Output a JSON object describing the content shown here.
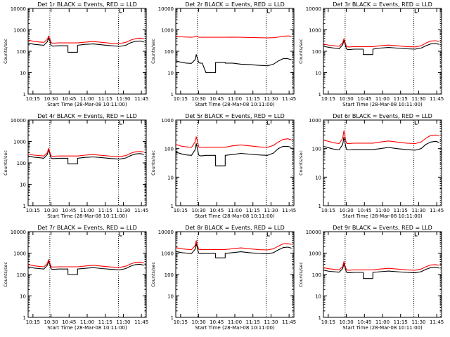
{
  "x_axis": {
    "ticks": [
      "10:15",
      "10:30",
      "10:45",
      "11:00",
      "11:15",
      "11:30",
      "11:45"
    ],
    "label": "Start Time (28-Mar-08 10:11:00)"
  },
  "y_axis": {
    "label": "Counts/sec",
    "ticks": [
      "1",
      "10",
      "100",
      "1000",
      "10000"
    ]
  },
  "colors": {
    "events": "#000000",
    "lld": "#ff0000",
    "axes": "#000000"
  },
  "chart_data": [
    {
      "type": "line",
      "title": "Det 1r BLACK = Events, RED = LLD",
      "xlabel": "Start Time (28-Mar-08 10:11:00)",
      "ylabel": "Counts/sec",
      "ylim": [
        1,
        10000
      ],
      "y_scale": "log",
      "x": [
        "10:11",
        "10:16",
        "10:20",
        "10:24",
        "10:27",
        "10:28",
        "10:29",
        "10:30",
        "10:31",
        "10:33",
        "10:36",
        "10:40",
        "10:44",
        "10:44",
        "10:52",
        "10:52",
        "10:58",
        "11:05",
        "11:12",
        "11:20",
        "11:27",
        "11:32",
        "11:36",
        "11:40",
        "11:44",
        "11:47"
      ],
      "series": [
        {
          "name": "Events",
          "values": [
            240,
            210,
            200,
            190,
            280,
            420,
            300,
            190,
            175,
            175,
            180,
            180,
            180,
            90,
            90,
            190,
            210,
            220,
            200,
            180,
            170,
            190,
            250,
            290,
            300,
            270
          ]
        },
        {
          "name": "LLD",
          "values": [
            330,
            290,
            270,
            260,
            360,
            520,
            370,
            260,
            240,
            240,
            245,
            245,
            245,
            245,
            245,
            245,
            265,
            285,
            260,
            235,
            230,
            260,
            330,
            390,
            410,
            380
          ]
        }
      ]
    },
    {
      "type": "line",
      "title": "Det 2r BLACK = Events, RED = LLD",
      "xlabel": "Start Time (28-Mar-08 10:11:00)",
      "ylabel": "Counts/sec",
      "ylim": [
        1,
        10000
      ],
      "y_scale": "log",
      "x": [
        "10:11",
        "10:16",
        "10:20",
        "10:24",
        "10:27",
        "10:28",
        "10:29",
        "10:30",
        "10:31",
        "10:33",
        "10:36",
        "10:40",
        "10:44",
        "10:44",
        "10:52",
        "10:52",
        "10:58",
        "11:05",
        "11:12",
        "11:20",
        "11:27",
        "11:32",
        "11:36",
        "11:40",
        "11:44",
        "11:47"
      ],
      "series": [
        {
          "name": "Events",
          "values": [
            35,
            30,
            28,
            27,
            40,
            70,
            45,
            30,
            28,
            28,
            10,
            10,
            10,
            30,
            30,
            28,
            28,
            25,
            24,
            22,
            21,
            25,
            35,
            45,
            45,
            40
          ]
        },
        {
          "name": "LLD",
          "values": [
            480,
            470,
            460,
            450,
            470,
            520,
            480,
            455,
            450,
            450,
            450,
            450,
            450,
            450,
            450,
            450,
            455,
            450,
            440,
            430,
            420,
            430,
            460,
            500,
            520,
            500
          ]
        }
      ]
    },
    {
      "type": "line",
      "title": "Det 3r BLACK = Events, RED = LLD",
      "xlabel": "Start Time (28-Mar-08 10:11:00)",
      "ylabel": "Counts/sec",
      "ylim": [
        1,
        10000
      ],
      "y_scale": "log",
      "x": [
        "10:11",
        "10:16",
        "10:20",
        "10:24",
        "10:27",
        "10:28",
        "10:29",
        "10:30",
        "10:31",
        "10:33",
        "10:36",
        "10:40",
        "10:44",
        "10:44",
        "10:52",
        "10:52",
        "10:58",
        "11:05",
        "11:12",
        "11:20",
        "11:27",
        "11:32",
        "11:36",
        "11:40",
        "11:44",
        "11:47"
      ],
      "series": [
        {
          "name": "Events",
          "values": [
            170,
            150,
            140,
            130,
            200,
            320,
            210,
            130,
            120,
            120,
            125,
            125,
            125,
            70,
            70,
            125,
            140,
            150,
            140,
            130,
            125,
            140,
            180,
            220,
            230,
            210
          ]
        },
        {
          "name": "LLD",
          "values": [
            220,
            190,
            180,
            170,
            250,
            380,
            260,
            170,
            160,
            160,
            165,
            165,
            165,
            165,
            165,
            165,
            180,
            195,
            180,
            165,
            160,
            180,
            240,
            300,
            310,
            290
          ]
        }
      ]
    },
    {
      "type": "line",
      "title": "Det 4r BLACK = Events, RED = LLD",
      "xlabel": "Start Time (28-Mar-08 10:11:00)",
      "ylabel": "Counts/sec",
      "ylim": [
        1,
        10000
      ],
      "y_scale": "log",
      "x": [
        "10:11",
        "10:16",
        "10:20",
        "10:24",
        "10:27",
        "10:28",
        "10:29",
        "10:30",
        "10:31",
        "10:33",
        "10:36",
        "10:40",
        "10:44",
        "10:44",
        "10:52",
        "10:52",
        "10:58",
        "11:05",
        "11:12",
        "11:20",
        "11:27",
        "11:32",
        "11:36",
        "11:40",
        "11:44",
        "11:47"
      ],
      "series": [
        {
          "name": "Events",
          "values": [
            210,
            185,
            175,
            165,
            250,
            420,
            270,
            170,
            160,
            160,
            165,
            165,
            165,
            90,
            90,
            165,
            180,
            190,
            175,
            160,
            150,
            170,
            220,
            260,
            270,
            250
          ]
        },
        {
          "name": "LLD",
          "values": [
            260,
            230,
            220,
            210,
            300,
            480,
            320,
            215,
            205,
            205,
            210,
            210,
            210,
            210,
            210,
            210,
            230,
            245,
            225,
            205,
            195,
            220,
            280,
            330,
            340,
            320
          ]
        }
      ]
    },
    {
      "type": "line",
      "title": "Det 5r BLACK = Events, RED = LLD",
      "xlabel": "Start Time (28-Mar-08 10:11:00)",
      "ylabel": "Counts/sec",
      "ylim": [
        1,
        1000
      ],
      "y_scale": "log",
      "x": [
        "10:11",
        "10:16",
        "10:20",
        "10:24",
        "10:27",
        "10:28",
        "10:29",
        "10:30",
        "10:31",
        "10:33",
        "10:36",
        "10:40",
        "10:44",
        "10:44",
        "10:52",
        "10:52",
        "10:58",
        "11:05",
        "11:12",
        "11:20",
        "11:27",
        "11:32",
        "11:36",
        "11:40",
        "11:44",
        "11:47"
      ],
      "series": [
        {
          "name": "Events",
          "values": [
            75,
            65,
            60,
            58,
            90,
            150,
            95,
            60,
            56,
            56,
            58,
            58,
            58,
            25,
            25,
            58,
            62,
            68,
            64,
            60,
            58,
            70,
            100,
            120,
            120,
            110
          ]
        },
        {
          "name": "LLD",
          "values": [
            140,
            120,
            115,
            110,
            170,
            260,
            180,
            115,
            110,
            110,
            112,
            112,
            112,
            112,
            112,
            112,
            125,
            135,
            125,
            115,
            110,
            130,
            170,
            210,
            220,
            200
          ]
        }
      ]
    },
    {
      "type": "line",
      "title": "Det 6r BLACK = Events, RED = LLD",
      "xlabel": "Start Time (28-Mar-08 10:11:00)",
      "ylabel": "Counts/sec",
      "ylim": [
        1,
        1000
      ],
      "y_scale": "log",
      "x": [
        "10:11",
        "10:16",
        "10:20",
        "10:24",
        "10:27",
        "10:28",
        "10:29",
        "10:30",
        "10:31",
        "10:33",
        "10:36",
        "10:40",
        "10:44",
        "10:44",
        "10:52",
        "10:52",
        "10:58",
        "11:05",
        "11:12",
        "11:20",
        "11:27",
        "11:32",
        "11:36",
        "11:40",
        "11:44",
        "11:47"
      ],
      "series": [
        {
          "name": "Events",
          "values": [
            120,
            105,
            95,
            90,
            140,
            250,
            150,
            95,
            90,
            90,
            92,
            92,
            92,
            92,
            92,
            92,
            100,
            110,
            100,
            92,
            88,
            100,
            140,
            170,
            180,
            165
          ]
        },
        {
          "name": "LLD",
          "values": [
            200,
            175,
            160,
            150,
            230,
            420,
            250,
            155,
            150,
            150,
            155,
            155,
            155,
            155,
            155,
            155,
            170,
            185,
            170,
            155,
            150,
            170,
            230,
            290,
            300,
            280
          ]
        }
      ]
    },
    {
      "type": "line",
      "title": "Det 7r BLACK = Events, RED = LLD",
      "xlabel": "Start Time (28-Mar-08 10:11:00)",
      "ylabel": "Counts/sec",
      "ylim": [
        1,
        10000
      ],
      "y_scale": "log",
      "x": [
        "10:11",
        "10:16",
        "10:20",
        "10:24",
        "10:27",
        "10:28",
        "10:29",
        "10:30",
        "10:31",
        "10:33",
        "10:36",
        "10:40",
        "10:44",
        "10:44",
        "10:52",
        "10:52",
        "10:58",
        "11:05",
        "11:12",
        "11:20",
        "11:27",
        "11:32",
        "11:36",
        "11:40",
        "11:44",
        "11:47"
      ],
      "series": [
        {
          "name": "Events",
          "values": [
            230,
            200,
            190,
            180,
            270,
            420,
            290,
            185,
            175,
            175,
            180,
            180,
            180,
            100,
            100,
            180,
            195,
            210,
            190,
            175,
            165,
            190,
            245,
            290,
            300,
            270
          ]
        },
        {
          "name": "LLD",
          "values": [
            290,
            255,
            240,
            230,
            330,
            500,
            350,
            235,
            225,
            225,
            230,
            230,
            230,
            230,
            230,
            230,
            250,
            270,
            245,
            225,
            215,
            245,
            310,
            370,
            380,
            350
          ]
        }
      ]
    },
    {
      "type": "line",
      "title": "Det 8r BLACK = Events, RED = LLD",
      "xlabel": "Start Time (28-Mar-08 10:11:00)",
      "ylabel": "Counts/sec",
      "ylim": [
        1,
        10000
      ],
      "y_scale": "log",
      "x": [
        "10:11",
        "10:16",
        "10:20",
        "10:24",
        "10:27",
        "10:28",
        "10:29",
        "10:30",
        "10:31",
        "10:33",
        "10:36",
        "10:40",
        "10:44",
        "10:44",
        "10:52",
        "10:52",
        "10:58",
        "11:05",
        "11:12",
        "11:20",
        "11:27",
        "11:32",
        "11:36",
        "11:40",
        "11:44",
        "11:47"
      ],
      "series": [
        {
          "name": "Events",
          "values": [
            1200,
            1050,
            1000,
            950,
            1500,
            2800,
            1600,
            1000,
            950,
            950,
            970,
            970,
            970,
            600,
            600,
            970,
            1050,
            1150,
            1050,
            960,
            920,
            1050,
            1400,
            1800,
            1900,
            1700
          ]
        },
        {
          "name": "LLD",
          "values": [
            1800,
            1600,
            1500,
            1450,
            2200,
            3800,
            2300,
            1500,
            1450,
            1450,
            1470,
            1470,
            1470,
            1470,
            1470,
            1470,
            1600,
            1750,
            1600,
            1450,
            1400,
            1600,
            2100,
            2700,
            2800,
            2550
          ]
        }
      ]
    },
    {
      "type": "line",
      "title": "Det 9r BLACK = Events, RED = LLD",
      "xlabel": "Start Time (28-Mar-08 10:11:00)",
      "ylabel": "Counts/sec",
      "ylim": [
        1,
        10000
      ],
      "y_scale": "log",
      "x": [
        "10:11",
        "10:16",
        "10:20",
        "10:24",
        "10:27",
        "10:28",
        "10:29",
        "10:30",
        "10:31",
        "10:33",
        "10:36",
        "10:40",
        "10:44",
        "10:44",
        "10:52",
        "10:52",
        "10:58",
        "11:05",
        "11:12",
        "11:20",
        "11:27",
        "11:32",
        "11:36",
        "11:40",
        "11:44",
        "11:47"
      ],
      "series": [
        {
          "name": "Events",
          "values": [
            160,
            140,
            135,
            128,
            190,
            320,
            200,
            130,
            122,
            122,
            125,
            125,
            125,
            65,
            65,
            125,
            135,
            145,
            135,
            125,
            120,
            135,
            175,
            210,
            220,
            200
          ]
        },
        {
          "name": "LLD",
          "values": [
            210,
            185,
            175,
            165,
            240,
            400,
            255,
            170,
            160,
            160,
            165,
            165,
            165,
            165,
            165,
            165,
            180,
            195,
            180,
            165,
            160,
            180,
            230,
            280,
            290,
            270
          ]
        }
      ]
    }
  ]
}
